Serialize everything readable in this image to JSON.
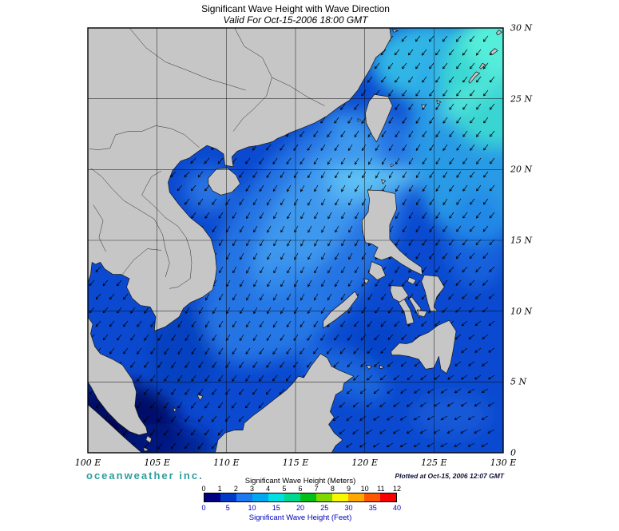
{
  "header": {
    "title": "Significant Wave Height with Wave Direction",
    "subtitle": "Valid For Oct-15-2006 18:00 GMT"
  },
  "axes": {
    "x_ticks": [
      "100 E",
      "105 E",
      "110 E",
      "115 E",
      "120 E",
      "125 E",
      "130 E"
    ],
    "y_ticks": [
      "30 N",
      "25 N",
      "20 N",
      "15 N",
      "10 N",
      "5 N",
      "0"
    ]
  },
  "footer": {
    "branding": "oceanweather inc.",
    "branding_color": "#2d9d9d",
    "plotted_at": "Plotted at Oct-15, 2006 12:07 GMT"
  },
  "legend": {
    "meters_title": "Significant Wave Height (Meters)",
    "feet_title": "Significant Wave Height (Feet)",
    "meters_ticks": [
      "0",
      "1",
      "2",
      "3",
      "4",
      "5",
      "6",
      "7",
      "8",
      "9",
      "10",
      "11",
      "12"
    ],
    "feet_ticks": [
      "0",
      "5",
      "10",
      "15",
      "20",
      "25",
      "30",
      "35",
      "40"
    ],
    "feet_scale_color": "#0000bb",
    "colors": [
      "#000080",
      "#0038c8",
      "#1e78f0",
      "#00a8f0",
      "#00e0e0",
      "#00d890",
      "#00c018",
      "#80d800",
      "#f8f800",
      "#ffa800",
      "#ff5800",
      "#f80000"
    ]
  },
  "map": {
    "extent": {
      "lon_min": 100,
      "lon_max": 130,
      "lat_min": 0,
      "lat_max": 30
    },
    "grid_step_deg": 5,
    "land_color": "#c6c6c6",
    "coastline_color": "#151515",
    "ocean_base": "#0b4ad0",
    "low_wave_navy": "#000a66",
    "high_wave_turquoise": "#3cdcd0",
    "arrow_color": "#000000",
    "grid_color": "#000000"
  }
}
